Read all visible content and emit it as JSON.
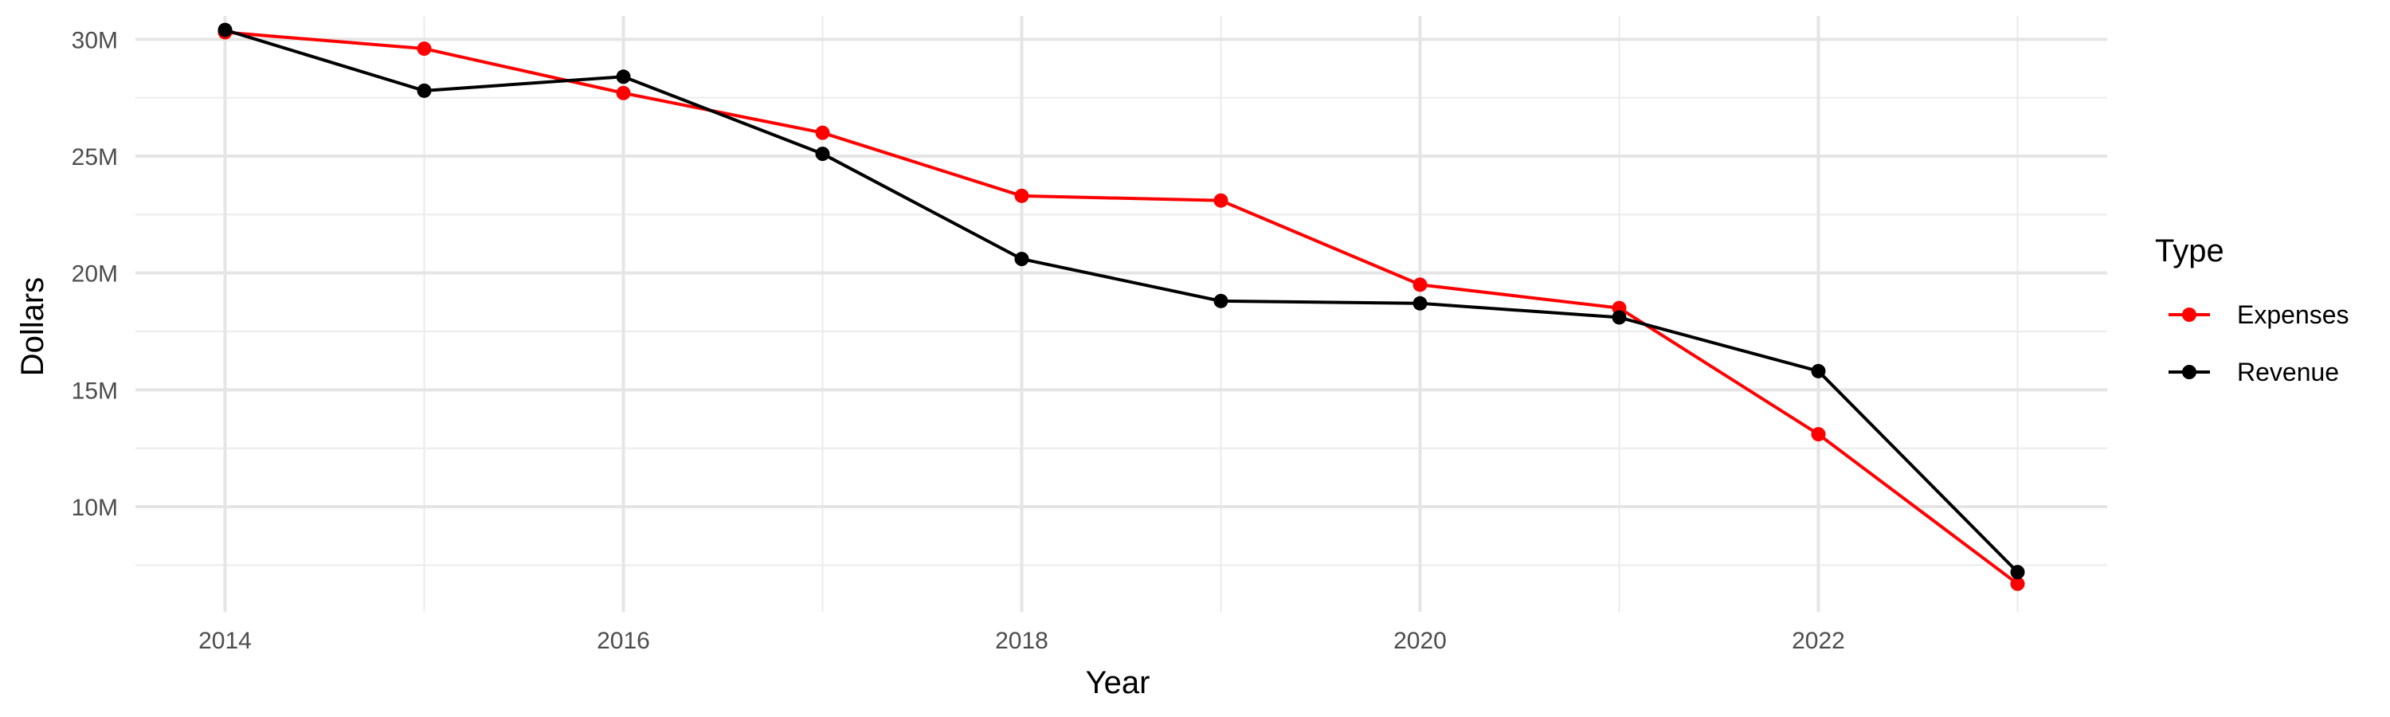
{
  "chart_data": {
    "type": "line",
    "title": "",
    "xlabel": "Year",
    "ylabel": "Dollars",
    "x": [
      2014,
      2015,
      2016,
      2017,
      2018,
      2019,
      2020,
      2021,
      2022,
      2023
    ],
    "xlim": [
      2013.55,
      2023.45
    ],
    "ylim": [
      5.5,
      31.0
    ],
    "x_ticks": [
      2014,
      2016,
      2018,
      2020,
      2022
    ],
    "x_tick_labels": [
      "2014",
      "2016",
      "2018",
      "2020",
      "2022"
    ],
    "y_ticks": [
      10,
      15,
      20,
      25,
      30
    ],
    "y_tick_labels": [
      "10M",
      "15M",
      "20M",
      "25M",
      "30M"
    ],
    "y_unit": "millions of dollars",
    "grid": true,
    "legend": {
      "title": "Type",
      "position": "right"
    },
    "series": [
      {
        "name": "Expenses",
        "color": "#ff0000",
        "values": [
          30.3,
          29.6,
          27.7,
          26.0,
          23.3,
          23.1,
          19.5,
          18.5,
          13.1,
          6.7
        ]
      },
      {
        "name": "Revenue",
        "color": "#000000",
        "values": [
          30.4,
          27.8,
          28.4,
          25.1,
          20.6,
          18.8,
          18.7,
          18.1,
          15.8,
          7.2
        ]
      }
    ]
  }
}
